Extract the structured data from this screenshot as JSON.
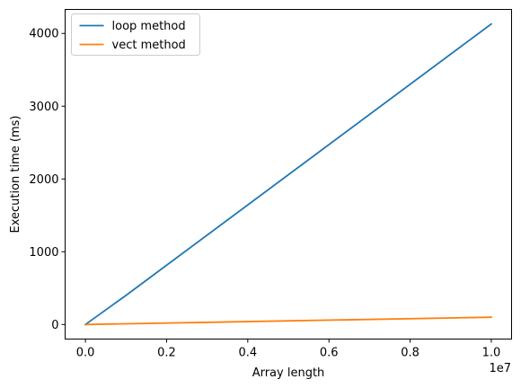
{
  "chart_data": {
    "type": "line",
    "xlabel": "Array length",
    "ylabel": "Execution time (ms)",
    "x_offset_label": "1e7",
    "xlim": [
      -0.05,
      1.05
    ],
    "ylim": [
      -200,
      4330
    ],
    "x_ticks": [
      0.0,
      0.2,
      0.4,
      0.6,
      0.8,
      1.0
    ],
    "x_tick_labels": [
      "0.0",
      "0.2",
      "0.4",
      "0.6",
      "0.8",
      "1.0"
    ],
    "y_ticks": [
      0,
      1000,
      2000,
      3000,
      4000
    ],
    "y_tick_labels": [
      "0",
      "1000",
      "2000",
      "3000",
      "4000"
    ],
    "grid": false,
    "legend_position": "upper-left",
    "series": [
      {
        "name": "loop method",
        "color": "#1f77b4",
        "x": [
          0.0,
          0.1,
          1.0
        ],
        "y": [
          0,
          400,
          4130
        ]
      },
      {
        "name": "vect method",
        "color": "#ff7f0e",
        "x": [
          0.0,
          1.0
        ],
        "y": [
          0,
          100
        ]
      }
    ]
  }
}
